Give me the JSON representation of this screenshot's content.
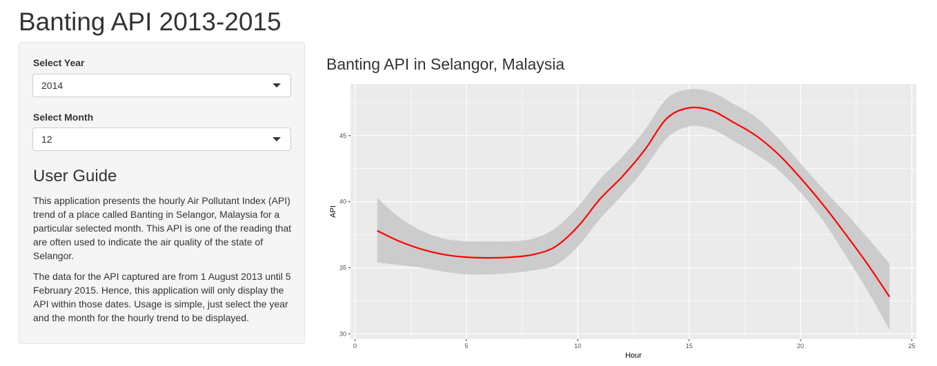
{
  "page": {
    "title": "Banting API 2013-2015"
  },
  "sidebar": {
    "year_label": "Select Year",
    "year_value": "2014",
    "month_label": "Select Month",
    "month_value": "12",
    "guide_title": "User Guide",
    "guide_p1": "This application presents the hourly Air Pollutant Index (API) trend of a place called Banting in Selangor, Malaysia for a particular selected month. This API is one of the reading that are often used to indicate the air quality of the state of Selangor.",
    "guide_p2": "The data for the API captured are from 1 August 2013 until 5 February 2015. Hence, this application will only display the API within those dates. Usage is simple, just select the year and the month for the hourly trend to be displayed."
  },
  "main": {
    "plot_title": "Banting API in Selangor, Malaysia"
  },
  "colors": {
    "panel_bg": "#ebebeb",
    "grid": "#ffffff",
    "line": "#ff0000",
    "ribbon": "#c9c9c9"
  },
  "chart_data": {
    "type": "line",
    "title": "",
    "xlabel": "Hour",
    "ylabel": "API",
    "xlim": [
      -0.2,
      25.2
    ],
    "ylim": [
      29.6,
      48.9
    ],
    "xticks": [
      0,
      5,
      10,
      15,
      20,
      25
    ],
    "yticks": [
      30,
      35,
      40,
      45
    ],
    "grid": true,
    "series": [
      {
        "x": [
          1,
          2,
          3,
          4,
          5,
          6,
          7,
          8,
          9,
          10,
          11,
          12,
          13,
          14,
          15,
          16,
          17,
          18,
          19,
          20,
          21,
          22,
          23,
          24
        ],
        "y": [
          37.8,
          37.0,
          36.4,
          36.0,
          35.8,
          35.75,
          35.8,
          36.0,
          36.6,
          38.1,
          40.2,
          41.9,
          43.9,
          46.3,
          47.1,
          46.9,
          46.0,
          45.0,
          43.6,
          41.8,
          39.8,
          37.6,
          35.3,
          32.8
        ],
        "lower": [
          35.4,
          35.2,
          35.0,
          34.7,
          34.5,
          34.5,
          34.6,
          34.8,
          35.2,
          36.6,
          38.7,
          40.5,
          42.5,
          44.8,
          45.7,
          45.5,
          44.6,
          43.6,
          42.4,
          40.7,
          38.6,
          36.0,
          33.3,
          30.3
        ],
        "upper": [
          40.3,
          38.8,
          37.8,
          37.2,
          37.0,
          37.0,
          37.0,
          37.2,
          38.0,
          39.6,
          41.7,
          43.4,
          45.4,
          47.8,
          48.5,
          48.3,
          47.4,
          46.4,
          44.8,
          42.9,
          41.0,
          39.2,
          37.3,
          35.3
        ]
      }
    ]
  }
}
